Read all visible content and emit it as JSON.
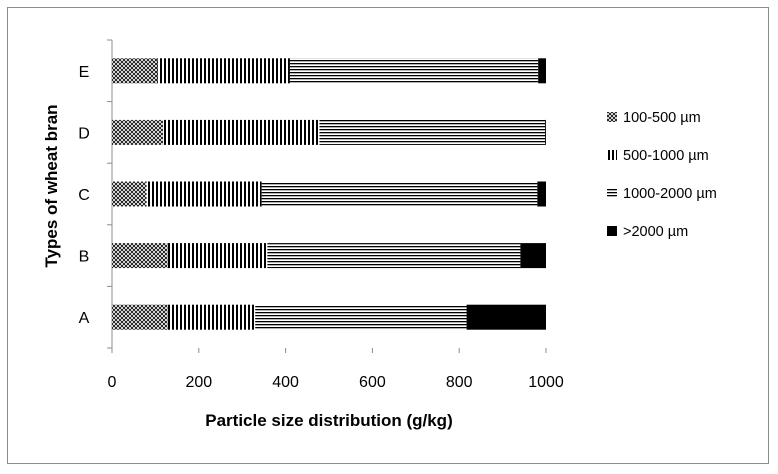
{
  "chart_data": {
    "type": "bar",
    "orientation": "horizontal",
    "stacked": true,
    "categories": [
      "A",
      "B",
      "C",
      "D",
      "E"
    ],
    "series": [
      {
        "name": "100-500 µm",
        "pattern": "crosshatch",
        "values": [
          128,
          128,
          80,
          118,
          105
        ]
      },
      {
        "name": "500-1000 µm",
        "pattern": "vertical-lines",
        "values": [
          202,
          230,
          265,
          360,
          305
        ]
      },
      {
        "name": "1000-2000 µm",
        "pattern": "horizontal-lines",
        "values": [
          487,
          583,
          635,
          520,
          572
        ]
      },
      {
        "name": ">2000 µm",
        "pattern": "solid",
        "values": [
          183,
          59,
          20,
          2,
          18
        ]
      }
    ],
    "xlabel": "Particle size distribution (g/kg)",
    "ylabel": "Types of wheat bran",
    "xlim": [
      0,
      1000
    ],
    "xticks": [
      "0",
      "200",
      "400",
      "600",
      "800",
      "1000"
    ],
    "grid": false,
    "legend_position": "right",
    "colors": {
      "fill": "#000000",
      "background": "#ffffff",
      "border": "#8c8c8c"
    }
  }
}
